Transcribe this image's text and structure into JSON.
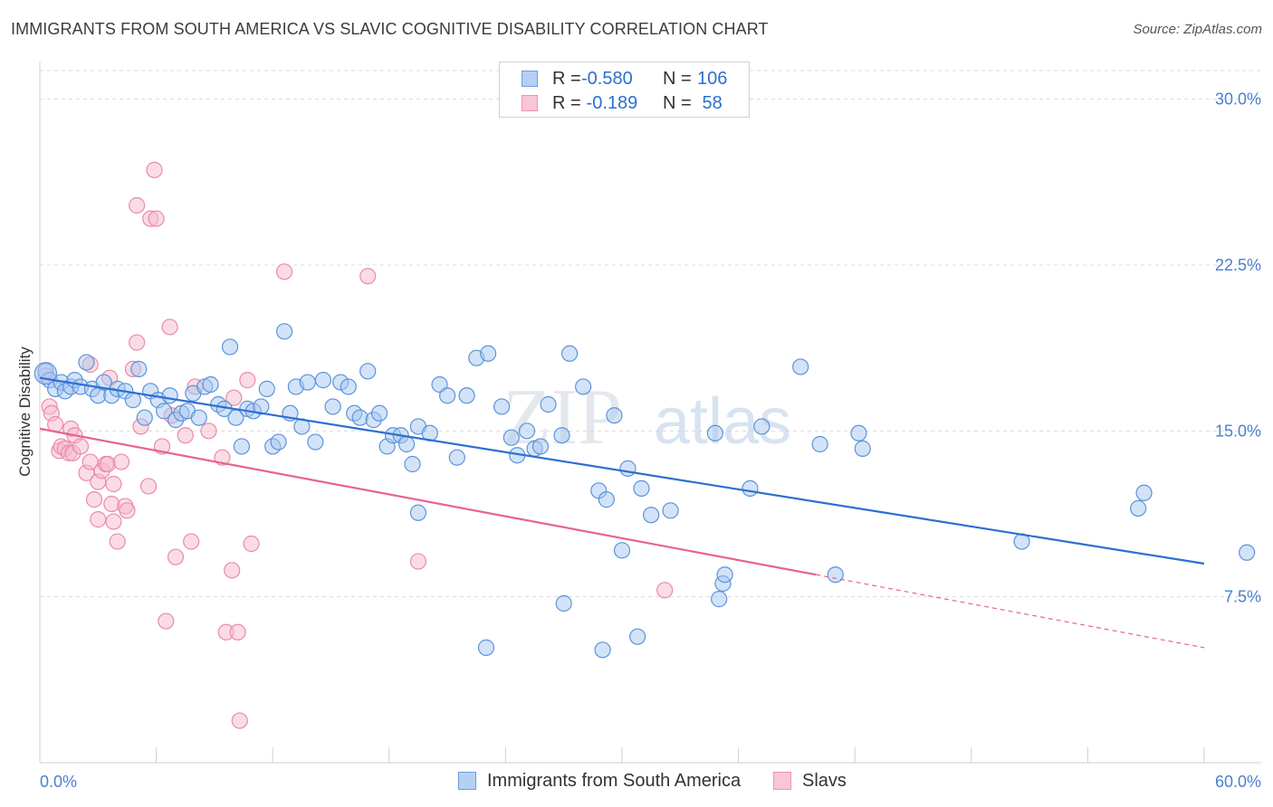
{
  "title": "IMMIGRANTS FROM SOUTH AMERICA VS SLAVIC COGNITIVE DISABILITY CORRELATION CHART",
  "source": "Source: ZipAtlas.com",
  "watermark": {
    "zip": "ZIP",
    "atlas": "atlas"
  },
  "legend": {
    "series1": {
      "r_label": "R = ",
      "r_value": "-0.580",
      "n_label": "N = ",
      "n_value": "106"
    },
    "series2": {
      "r_label": "R = ",
      "r_value": " -0.189",
      "n_label": "N = ",
      "n_value": " 58"
    }
  },
  "colors": {
    "blue_fill": "#a8c8f0",
    "blue_stroke": "#5b93dc",
    "blue_line": "#2c6fd1",
    "pink_fill": "#f6b9cc",
    "pink_stroke": "#ec8aa9",
    "pink_line": "#e8638f",
    "axis_text": "#4a7fd0",
    "grid": "#dcdcdc"
  },
  "chart_data": {
    "type": "scatter",
    "xlabel": "",
    "ylabel": "Cognitive Disability",
    "xlim": [
      0,
      60
    ],
    "ylim": [
      0,
      31.5
    ],
    "x_tick_labels": [
      {
        "value": 0,
        "label": "0.0%"
      },
      {
        "value": 60,
        "label": "60.0%"
      }
    ],
    "y_tick_labels": [
      {
        "value": 7.5,
        "label": "7.5%"
      },
      {
        "value": 15.0,
        "label": "15.0%"
      },
      {
        "value": 22.5,
        "label": "22.5%"
      },
      {
        "value": 30.0,
        "label": "30.0%"
      }
    ],
    "series": [
      {
        "name": "Immigrants from South America",
        "R": -0.58,
        "N": 106,
        "trend": {
          "x": [
            0,
            60
          ],
          "y": [
            17.4,
            9.0
          ]
        },
        "points": [
          [
            0.3,
            17.7
          ],
          [
            0.5,
            17.3
          ],
          [
            0.8,
            16.9
          ],
          [
            1.1,
            17.2
          ],
          [
            1.3,
            16.8
          ],
          [
            1.6,
            17.0
          ],
          [
            1.8,
            17.3
          ],
          [
            2.1,
            17.0
          ],
          [
            2.4,
            18.1
          ],
          [
            2.7,
            16.9
          ],
          [
            3.0,
            16.6
          ],
          [
            3.3,
            17.2
          ],
          [
            3.7,
            16.6
          ],
          [
            4.0,
            16.9
          ],
          [
            4.4,
            16.8
          ],
          [
            4.8,
            16.4
          ],
          [
            5.1,
            17.8
          ],
          [
            5.4,
            15.6
          ],
          [
            5.7,
            16.8
          ],
          [
            6.1,
            16.4
          ],
          [
            6.4,
            15.9
          ],
          [
            6.7,
            16.6
          ],
          [
            7.0,
            15.5
          ],
          [
            7.3,
            15.8
          ],
          [
            7.6,
            15.9
          ],
          [
            7.9,
            16.7
          ],
          [
            8.2,
            15.6
          ],
          [
            8.5,
            17.0
          ],
          [
            8.8,
            17.1
          ],
          [
            9.2,
            16.2
          ],
          [
            9.5,
            16.0
          ],
          [
            9.8,
            18.8
          ],
          [
            10.1,
            15.6
          ],
          [
            10.4,
            14.3
          ],
          [
            10.7,
            16.0
          ],
          [
            11.0,
            15.9
          ],
          [
            11.4,
            16.1
          ],
          [
            11.7,
            16.9
          ],
          [
            12.0,
            14.3
          ],
          [
            12.3,
            14.5
          ],
          [
            12.6,
            19.5
          ],
          [
            12.9,
            15.8
          ],
          [
            13.2,
            17.0
          ],
          [
            13.5,
            15.2
          ],
          [
            13.8,
            17.2
          ],
          [
            14.2,
            14.5
          ],
          [
            14.6,
            17.3
          ],
          [
            15.1,
            16.1
          ],
          [
            15.5,
            17.2
          ],
          [
            15.9,
            17.0
          ],
          [
            16.2,
            15.8
          ],
          [
            16.5,
            15.6
          ],
          [
            16.9,
            17.7
          ],
          [
            17.2,
            15.5
          ],
          [
            17.5,
            15.8
          ],
          [
            17.9,
            14.3
          ],
          [
            18.2,
            14.8
          ],
          [
            18.6,
            14.8
          ],
          [
            18.9,
            14.4
          ],
          [
            19.2,
            13.5
          ],
          [
            19.5,
            15.2
          ],
          [
            20.1,
            14.9
          ],
          [
            20.6,
            17.1
          ],
          [
            21.0,
            16.6
          ],
          [
            21.5,
            13.8
          ],
          [
            22.0,
            16.6
          ],
          [
            22.5,
            18.3
          ],
          [
            23.1,
            18.5
          ],
          [
            23.8,
            16.1
          ],
          [
            24.3,
            14.7
          ],
          [
            24.6,
            13.9
          ],
          [
            25.1,
            15.0
          ],
          [
            25.5,
            14.2
          ],
          [
            25.8,
            14.3
          ],
          [
            26.2,
            16.2
          ],
          [
            26.9,
            14.8
          ],
          [
            27.3,
            18.5
          ],
          [
            28.0,
            17.0
          ],
          [
            28.8,
            12.3
          ],
          [
            29.2,
            11.9
          ],
          [
            29.6,
            15.7
          ],
          [
            30.3,
            13.3
          ],
          [
            31.0,
            12.4
          ],
          [
            30.0,
            9.6
          ],
          [
            27.0,
            7.2
          ],
          [
            29.0,
            5.1
          ],
          [
            30.8,
            5.7
          ],
          [
            23.0,
            5.2
          ],
          [
            32.5,
            11.4
          ],
          [
            34.8,
            14.9
          ],
          [
            36.6,
            12.4
          ],
          [
            37.2,
            15.2
          ],
          [
            40.2,
            14.4
          ],
          [
            35.2,
            8.1
          ],
          [
            35.3,
            8.5
          ],
          [
            41.0,
            8.5
          ],
          [
            42.2,
            14.9
          ],
          [
            42.4,
            14.2
          ],
          [
            50.6,
            10.0
          ],
          [
            56.6,
            11.5
          ],
          [
            56.9,
            12.2
          ],
          [
            62.2,
            9.5
          ],
          [
            19.5,
            11.3
          ],
          [
            31.5,
            11.2
          ],
          [
            35.0,
            7.4
          ],
          [
            39.2,
            17.9
          ]
        ]
      },
      {
        "name": "Slavs",
        "R": -0.189,
        "N": 58,
        "trend": {
          "x": [
            0,
            40
          ],
          "y": [
            15.1,
            8.5
          ]
        },
        "trend_dashed": {
          "x": [
            40,
            60
          ],
          "y": [
            8.5,
            5.2
          ]
        },
        "points": [
          [
            0.3,
            17.5
          ],
          [
            0.5,
            16.1
          ],
          [
            0.6,
            15.8
          ],
          [
            0.8,
            15.3
          ],
          [
            1.0,
            14.1
          ],
          [
            1.1,
            14.3
          ],
          [
            1.3,
            14.2
          ],
          [
            1.5,
            14.0
          ],
          [
            1.6,
            15.1
          ],
          [
            1.7,
            14.0
          ],
          [
            1.8,
            14.8
          ],
          [
            2.1,
            14.3
          ],
          [
            2.4,
            13.1
          ],
          [
            2.6,
            13.6
          ],
          [
            2.8,
            11.9
          ],
          [
            3.0,
            12.7
          ],
          [
            3.0,
            11.0
          ],
          [
            3.2,
            13.2
          ],
          [
            3.4,
            13.5
          ],
          [
            3.5,
            13.5
          ],
          [
            3.8,
            12.6
          ],
          [
            3.7,
            11.7
          ],
          [
            3.8,
            10.9
          ],
          [
            4.0,
            10.0
          ],
          [
            4.2,
            13.6
          ],
          [
            4.4,
            11.6
          ],
          [
            4.5,
            11.4
          ],
          [
            5.0,
            19.0
          ],
          [
            5.2,
            15.2
          ],
          [
            5.6,
            12.5
          ],
          [
            5.0,
            25.2
          ],
          [
            5.7,
            24.6
          ],
          [
            6.0,
            24.6
          ],
          [
            5.9,
            26.8
          ],
          [
            6.3,
            14.3
          ],
          [
            6.5,
            6.4
          ],
          [
            6.7,
            19.7
          ],
          [
            6.8,
            15.7
          ],
          [
            7.0,
            9.3
          ],
          [
            7.5,
            14.8
          ],
          [
            7.8,
            10.0
          ],
          [
            8.7,
            15.0
          ],
          [
            9.4,
            13.8
          ],
          [
            9.6,
            5.9
          ],
          [
            9.9,
            8.7
          ],
          [
            10.0,
            16.5
          ],
          [
            10.2,
            5.9
          ],
          [
            10.3,
            1.9
          ],
          [
            10.7,
            17.3
          ],
          [
            10.9,
            9.9
          ],
          [
            12.6,
            22.2
          ],
          [
            16.9,
            22.0
          ],
          [
            19.5,
            9.1
          ],
          [
            32.2,
            7.8
          ],
          [
            2.6,
            18.0
          ],
          [
            3.6,
            17.4
          ],
          [
            4.8,
            17.8
          ],
          [
            8.0,
            17.0
          ]
        ]
      }
    ]
  },
  "bottom_legend": [
    "Immigrants from South America",
    "Slavs"
  ]
}
